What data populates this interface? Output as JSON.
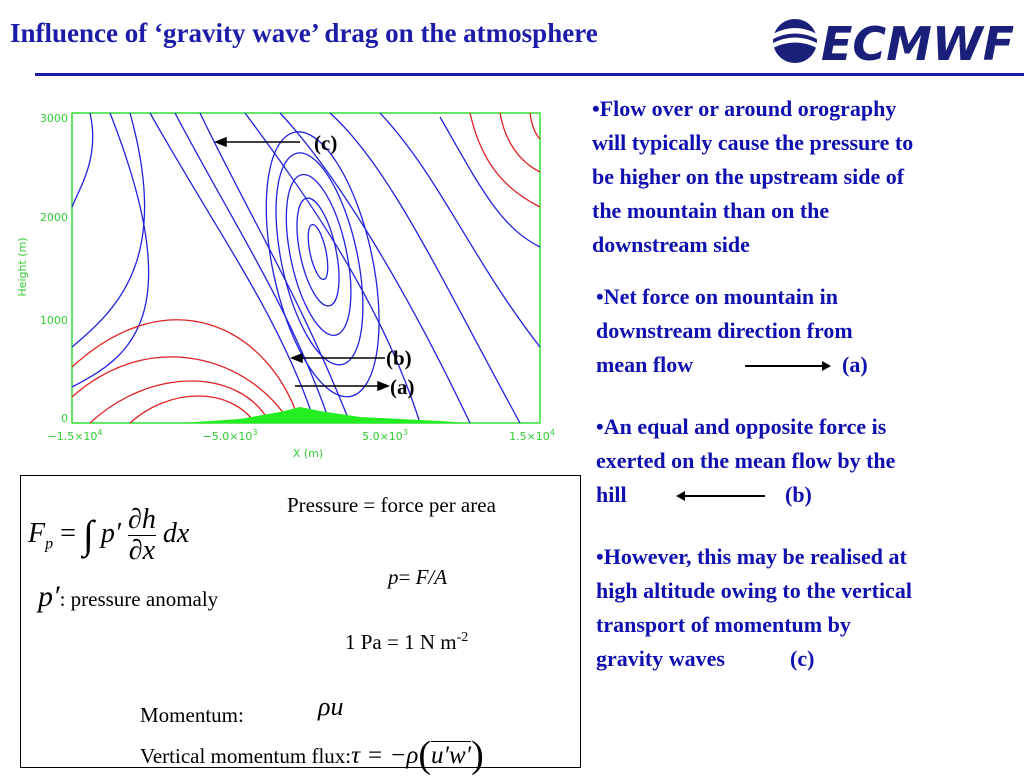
{
  "header": {
    "title": "Influence of ‘gravity wave’ drag on the atmosphere",
    "logo": "ECMWF"
  },
  "plot": {
    "y_axis_label": "Height (m)",
    "x_axis_label": "X (m)",
    "y_ticks": [
      "3000",
      "2000",
      "1000",
      "0"
    ],
    "x_ticks": [
      {
        "base": "−1.5×10",
        "exp": "4"
      },
      {
        "base": "−5.0×10",
        "exp": "3"
      },
      {
        "base": "5.0×10",
        "exp": "3"
      },
      {
        "base": "1.5×10",
        "exp": "4"
      }
    ],
    "labels": {
      "c": "(c)",
      "b": "(b)",
      "a": "(a)"
    }
  },
  "bullets": [
    {
      "lines": [
        "•Flow over or around orography",
        "will typically cause the pressure to",
        "be higher on the upstream side of",
        "the mountain than on the",
        "downstream side"
      ]
    },
    {
      "lines": [
        "•Net force on mountain in",
        "downstream direction from",
        "mean flow"
      ],
      "tag": "(a)"
    },
    {
      "lines": [
        "•An equal and opposite force is",
        "exerted on the mean flow by the",
        "hill"
      ],
      "tag": "(b)"
    },
    {
      "lines": [
        "•However, this may be realised at",
        "high altitude owing to the vertical",
        "transport of momentum by",
        "gravity waves"
      ],
      "tag": "(c)"
    }
  ],
  "formulas": {
    "drag": {
      "F": "F",
      "sub": "p",
      "eq": "=",
      "int": "∫",
      "p": "p′",
      "num": "∂h",
      "den": "∂x",
      "dx": "dx"
    },
    "pressure_def": "Pressure = force per area",
    "p_eq": {
      "p": "p",
      "rest": "= ",
      "fa": "F/A"
    },
    "anomaly": {
      "symbol": "p′",
      "text": ": pressure anomaly"
    },
    "pascal": {
      "text": "1 Pa = 1 N m",
      "exp": "-2"
    },
    "momentum": {
      "label": "Momentum:",
      "expr": "ρu"
    },
    "flux": {
      "label": "Vertical momentum flux:",
      "expr": "τ = −ρ",
      "inner": "u′w′"
    }
  }
}
